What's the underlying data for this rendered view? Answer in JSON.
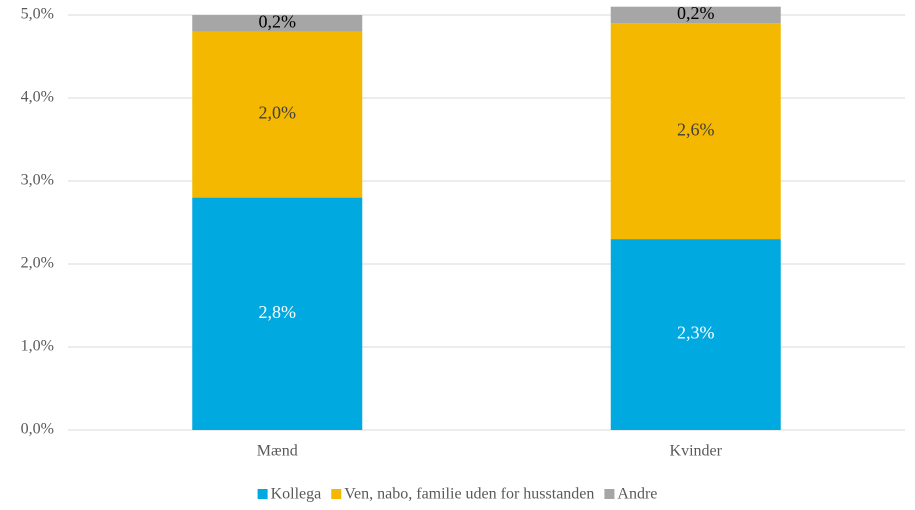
{
  "chart_data": {
    "type": "stacked_bar",
    "categories": [
      "Mænd",
      "Kvinder"
    ],
    "series": [
      {
        "name": "Kollega",
        "color": "#00a9e0",
        "values": [
          2.8,
          2.3
        ],
        "value_labels": [
          "2,8%",
          "2,3%"
        ]
      },
      {
        "name": "Ven, nabo, familie uden for husstanden",
        "color": "#f5b800",
        "values": [
          2.0,
          2.6
        ],
        "value_labels": [
          "2,0%",
          "2,6%"
        ]
      },
      {
        "name": "Andre",
        "color": "#a6a6a6",
        "values": [
          0.2,
          0.2
        ],
        "value_labels": [
          "0,2%",
          "0,2%"
        ]
      }
    ],
    "ylim": [
      0,
      5
    ],
    "yticks": [
      {
        "value": 0,
        "label": "0,0%"
      },
      {
        "value": 1,
        "label": "1,0%"
      },
      {
        "value": 2,
        "label": "2,0%"
      },
      {
        "value": 3,
        "label": "3,0%"
      },
      {
        "value": 4,
        "label": "4,0%"
      },
      {
        "value": 5,
        "label": "5,0%"
      }
    ],
    "grid": true,
    "legend": "bottom"
  }
}
